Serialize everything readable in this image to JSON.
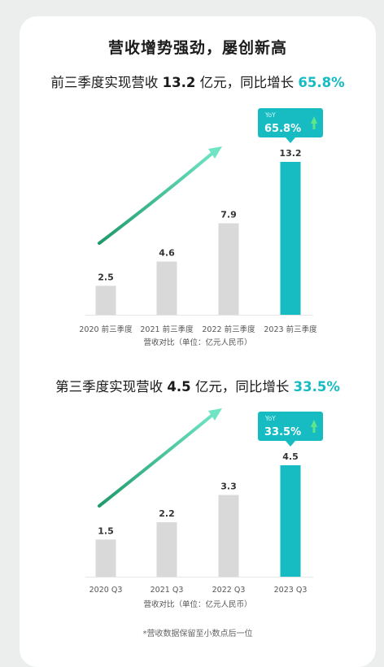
{
  "page": {
    "main_title": "营收增势强劲，屡创新高",
    "footnote": "*营收数据保留至小数点后一位"
  },
  "colors": {
    "accent": "#16bcc2",
    "bar_gray": "#d9d9d9",
    "arrow_start": "#1f9a6a",
    "arrow_end": "#6fe5c6"
  },
  "sections": [
    {
      "headline": {
        "pre": "前三季度实现营收 ",
        "value": "13.2",
        "mid": " 亿元，同比增长 ",
        "pct": "65.8%"
      },
      "badge": {
        "label": "YoY",
        "value": "65.8%"
      },
      "xlabel": "营收对比（单位：亿元人民币）"
    },
    {
      "headline": {
        "pre": "第三季度实现营收 ",
        "value": "4.5",
        "mid": " 亿元，同比增长 ",
        "pct": "33.5%"
      },
      "badge": {
        "label": "YoY",
        "value": "33.5%"
      },
      "xlabel": "营收对比（单位：亿元人民币）"
    }
  ],
  "chart_data": [
    {
      "type": "bar",
      "categories": [
        "2020 前三季度",
        "2021 前三季度",
        "2022 前三季度",
        "2023 前三季度"
      ],
      "values": [
        2.5,
        4.6,
        7.9,
        13.2
      ],
      "value_labels": [
        "2.5",
        "4.6",
        "7.9",
        "13.2"
      ],
      "highlight_index": 3,
      "xlabel": "营收对比（单位：亿元人民币）",
      "ylim": [
        0,
        13.2
      ]
    },
    {
      "type": "bar",
      "categories": [
        "2020 Q3",
        "2021 Q3",
        "2022 Q3",
        "2023 Q3"
      ],
      "values": [
        1.5,
        2.2,
        3.3,
        4.5
      ],
      "value_labels": [
        "1.5",
        "2.2",
        "3.3",
        "4.5"
      ],
      "highlight_index": 3,
      "xlabel": "营收对比（单位：亿元人民币）",
      "ylim": [
        0,
        4.5
      ]
    }
  ]
}
